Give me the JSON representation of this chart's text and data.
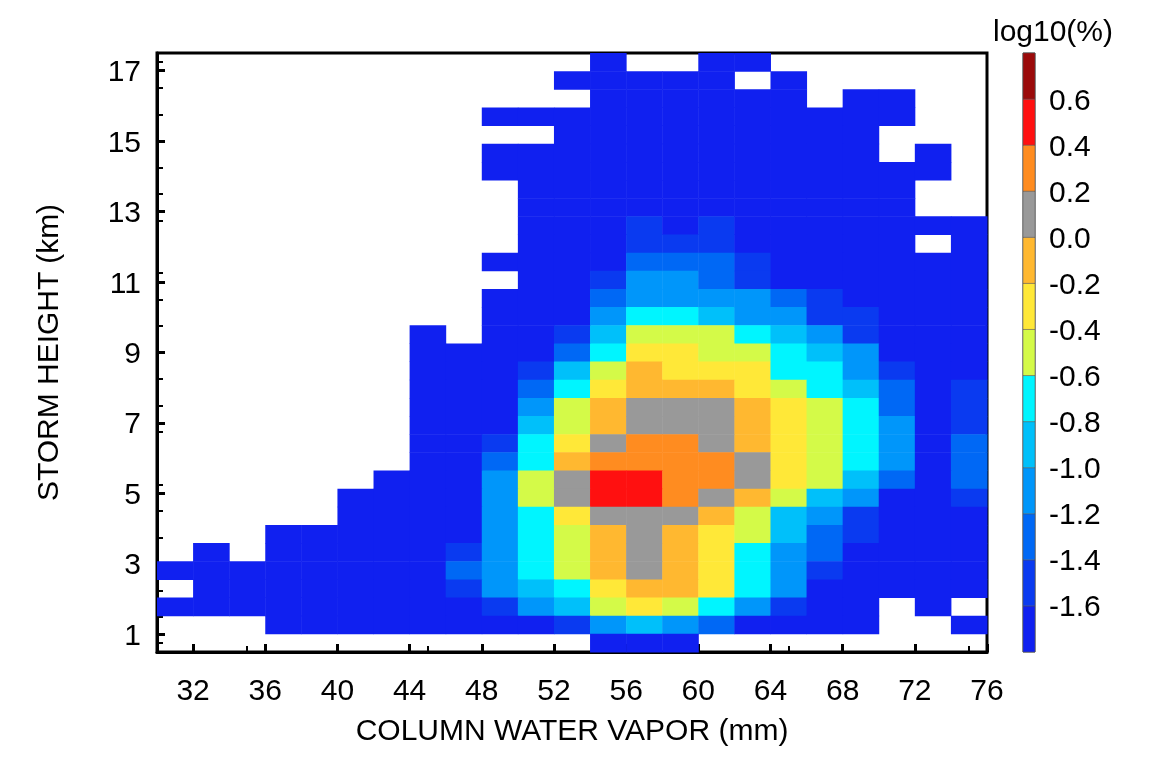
{
  "chart_data": {
    "type": "heatmap",
    "xlabel": "COLUMN WATER VAPOR (mm)",
    "ylabel": "STORM HEIGHT (km)",
    "clabel": "log10(%)",
    "xlim": [
      30,
      76
    ],
    "xticks": [
      32,
      36,
      40,
      44,
      48,
      52,
      56,
      60,
      64,
      68,
      72,
      76
    ],
    "ylim": [
      0.5,
      17.5
    ],
    "yticks": [
      1,
      3,
      5,
      7,
      9,
      11,
      13,
      15,
      17
    ],
    "clim": [
      -1.8,
      0.8
    ],
    "cticks": [
      -1.6,
      -1.4,
      -1.2,
      {
        "value": -1,
        "label": "-1.0"
      },
      -0.8,
      -0.6,
      -0.4,
      -0.2,
      {
        "value": 0,
        "label": "0.0"
      },
      0.2,
      0.4,
      0.6
    ],
    "colors": [
      "#1020f0",
      "#0a3af0",
      "#0068f5",
      "#0096fa",
      "#00c0fa",
      "#00f5ff",
      "#d4fa48",
      "#ffe838",
      "#ffb830",
      "#999999",
      "#ff8c20",
      "#ff1010",
      "#9b0a0a"
    ],
    "grid": false,
    "cells": [
      [
        null,
        null,
        null,
        null,
        null,
        null,
        null,
        null,
        null,
        null,
        null,
        null,
        -1.7,
        null,
        null,
        -1.7,
        -1.7,
        null,
        null,
        null,
        null,
        null,
        null
      ],
      [
        null,
        null,
        null,
        null,
        null,
        null,
        null,
        null,
        null,
        null,
        null,
        -1.7,
        -1.7,
        -1.7,
        -1.7,
        -1.7,
        null,
        -1.7,
        null,
        null,
        null,
        null,
        null
      ],
      [
        null,
        null,
        null,
        null,
        null,
        null,
        null,
        null,
        null,
        null,
        null,
        null,
        -1.7,
        -1.7,
        -1.7,
        -1.7,
        -1.7,
        -1.7,
        null,
        -1.7,
        -1.7,
        null,
        null
      ],
      [
        null,
        null,
        null,
        null,
        null,
        null,
        null,
        null,
        null,
        -1.7,
        -1.7,
        -1.7,
        -1.7,
        -1.7,
        -1.7,
        -1.7,
        -1.7,
        -1.7,
        -1.7,
        -1.7,
        -1.7,
        null,
        null
      ],
      [
        null,
        null,
        null,
        null,
        null,
        null,
        null,
        null,
        null,
        null,
        null,
        -1.7,
        -1.7,
        -1.7,
        -1.7,
        -1.7,
        -1.7,
        -1.7,
        -1.7,
        -1.7,
        null,
        null,
        null
      ],
      [
        null,
        null,
        null,
        null,
        null,
        null,
        null,
        null,
        null,
        -1.7,
        -1.7,
        -1.7,
        -1.7,
        -1.7,
        -1.7,
        -1.7,
        -1.7,
        -1.7,
        -1.7,
        -1.7,
        null,
        -1.7,
        null
      ],
      [
        null,
        null,
        null,
        null,
        null,
        null,
        null,
        null,
        null,
        -1.7,
        -1.7,
        -1.7,
        -1.7,
        -1.7,
        -1.7,
        -1.7,
        -1.7,
        -1.7,
        -1.7,
        -1.7,
        -1.7,
        -1.7,
        null
      ],
      [
        null,
        null,
        null,
        null,
        null,
        null,
        null,
        null,
        null,
        null,
        -1.7,
        -1.7,
        -1.7,
        -1.7,
        -1.7,
        -1.7,
        -1.7,
        -1.7,
        -1.7,
        -1.7,
        -1.7,
        null,
        null
      ],
      [
        null,
        null,
        null,
        null,
        null,
        null,
        null,
        null,
        null,
        null,
        -1.7,
        -1.7,
        -1.7,
        -1.7,
        -1.7,
        -1.7,
        -1.7,
        -1.7,
        -1.7,
        -1.7,
        -1.7,
        null,
        null
      ],
      [
        null,
        null,
        null,
        null,
        null,
        null,
        null,
        null,
        null,
        null,
        -1.7,
        -1.7,
        -1.7,
        -1.5,
        -1.7,
        -1.5,
        -1.7,
        -1.7,
        -1.7,
        -1.7,
        -1.7,
        -1.7,
        -1.7
      ],
      [
        null,
        null,
        null,
        null,
        null,
        null,
        null,
        null,
        null,
        null,
        -1.7,
        -1.7,
        -1.7,
        -1.5,
        -1.5,
        -1.5,
        -1.7,
        -1.7,
        -1.7,
        -1.7,
        -1.7,
        null,
        -1.7
      ],
      [
        null,
        null,
        null,
        null,
        null,
        null,
        null,
        null,
        null,
        -1.7,
        -1.7,
        -1.7,
        -1.7,
        -1.3,
        -1.3,
        -1.3,
        -1.5,
        -1.7,
        -1.7,
        -1.7,
        -1.7,
        -1.7,
        -1.7
      ],
      [
        null,
        null,
        null,
        null,
        null,
        null,
        null,
        null,
        null,
        null,
        -1.7,
        -1.7,
        -1.5,
        -1.1,
        -1.1,
        -1.3,
        -1.5,
        -1.7,
        -1.7,
        -1.7,
        -1.7,
        -1.7,
        -1.7
      ],
      [
        null,
        null,
        null,
        null,
        null,
        null,
        null,
        null,
        null,
        -1.7,
        -1.7,
        -1.7,
        -1.3,
        -1.1,
        -1.1,
        -1.1,
        -1.1,
        -1.3,
        -1.5,
        -1.7,
        -1.7,
        -1.7,
        -1.7
      ],
      [
        null,
        null,
        null,
        null,
        null,
        null,
        null,
        null,
        null,
        -1.7,
        -1.7,
        -1.7,
        -1.1,
        -0.7,
        -0.7,
        -0.9,
        -1.1,
        -1.1,
        -1.5,
        -1.5,
        -1.7,
        -1.7,
        -1.7
      ],
      [
        null,
        null,
        null,
        null,
        null,
        null,
        null,
        -1.7,
        null,
        -1.7,
        -1.7,
        -1.5,
        -0.9,
        -0.5,
        -0.5,
        -0.5,
        -0.7,
        -0.9,
        -1.1,
        -1.5,
        -1.7,
        -1.7,
        -1.7
      ],
      [
        null,
        null,
        null,
        null,
        null,
        null,
        null,
        -1.7,
        -1.7,
        -1.7,
        -1.7,
        -1.3,
        -0.7,
        -0.3,
        -0.3,
        -0.5,
        -0.5,
        -0.7,
        -0.9,
        -1.1,
        -1.7,
        -1.7,
        -1.7
      ],
      [
        null,
        null,
        null,
        null,
        null,
        null,
        null,
        -1.7,
        -1.7,
        -1.7,
        -1.5,
        -0.9,
        -0.5,
        -0.1,
        -0.3,
        -0.3,
        -0.3,
        -0.7,
        -0.7,
        -1.1,
        -1.5,
        -1.7,
        -1.7
      ],
      [
        null,
        null,
        null,
        null,
        null,
        null,
        null,
        -1.7,
        -1.7,
        -1.7,
        -1.3,
        -0.7,
        -0.3,
        -0.1,
        -0.1,
        -0.1,
        -0.3,
        -0.5,
        -0.7,
        -0.9,
        -1.3,
        -1.7,
        -1.5
      ],
      [
        null,
        null,
        null,
        null,
        null,
        null,
        null,
        -1.7,
        -1.7,
        -1.7,
        -1.1,
        -0.5,
        -0.1,
        0.1,
        0.1,
        0.1,
        -0.1,
        -0.3,
        -0.5,
        -0.7,
        -1.3,
        -1.7,
        -1.5
      ],
      [
        null,
        null,
        null,
        null,
        null,
        null,
        null,
        -1.7,
        -1.7,
        -1.7,
        -0.9,
        -0.5,
        -0.1,
        0.1,
        0.1,
        0.1,
        -0.1,
        -0.3,
        -0.5,
        -0.7,
        -1.1,
        -1.7,
        -1.5
      ],
      [
        null,
        null,
        null,
        null,
        null,
        null,
        null,
        -1.7,
        -1.7,
        -1.5,
        -0.7,
        -0.3,
        0.1,
        0.3,
        0.3,
        0.1,
        -0.1,
        -0.3,
        -0.5,
        -0.7,
        -1.1,
        -1.7,
        -1.3
      ],
      [
        null,
        null,
        null,
        null,
        null,
        null,
        null,
        -1.7,
        -1.7,
        -1.3,
        -0.7,
        -0.1,
        0.3,
        0.3,
        0.3,
        0.3,
        0.1,
        -0.3,
        -0.5,
        -0.7,
        -1.1,
        -1.7,
        -1.3
      ],
      [
        null,
        null,
        null,
        null,
        null,
        null,
        -1.7,
        -1.7,
        -1.7,
        -1.1,
        -0.5,
        0.1,
        0.5,
        0.5,
        0.3,
        0.3,
        0.1,
        -0.3,
        -0.5,
        -0.9,
        -1.3,
        -1.7,
        -1.3
      ],
      [
        null,
        null,
        null,
        null,
        null,
        -1.7,
        -1.7,
        -1.7,
        -1.7,
        -1.1,
        -0.5,
        0.1,
        0.5,
        0.5,
        0.3,
        0.1,
        -0.1,
        -0.5,
        -0.9,
        -1.1,
        -1.7,
        -1.7,
        -1.5
      ],
      [
        null,
        null,
        null,
        null,
        null,
        -1.7,
        -1.7,
        -1.7,
        -1.7,
        -1.1,
        -0.7,
        -0.3,
        0.1,
        0.1,
        0.1,
        -0.1,
        -0.5,
        -0.9,
        -1.1,
        -1.5,
        -1.7,
        -1.7,
        -1.7
      ],
      [
        null,
        null,
        null,
        -1.7,
        -1.7,
        -1.7,
        -1.7,
        -1.7,
        -1.7,
        -1.1,
        -0.7,
        -0.5,
        -0.1,
        0.1,
        -0.1,
        -0.3,
        -0.5,
        -0.9,
        -1.3,
        -1.5,
        -1.7,
        -1.7,
        -1.7
      ],
      [
        null,
        -1.7,
        null,
        -1.7,
        -1.7,
        -1.7,
        -1.7,
        -1.7,
        -1.5,
        -1.1,
        -0.7,
        -0.5,
        -0.1,
        0.1,
        -0.1,
        -0.3,
        -0.7,
        -1.1,
        -1.3,
        -1.7,
        -1.7,
        -1.7,
        -1.7
      ],
      [
        -1.7,
        -1.7,
        -1.7,
        -1.7,
        -1.7,
        -1.7,
        -1.7,
        -1.7,
        -1.3,
        -1.1,
        -0.7,
        -0.5,
        -0.1,
        0.1,
        -0.1,
        -0.3,
        -0.7,
        -1.1,
        -1.5,
        -1.7,
        -1.7,
        -1.7,
        -1.7
      ],
      [
        null,
        -1.7,
        -1.7,
        -1.7,
        -1.7,
        -1.7,
        -1.7,
        -1.7,
        -1.5,
        -1.1,
        -0.9,
        -0.7,
        -0.3,
        -0.1,
        -0.1,
        -0.3,
        -0.7,
        -1.1,
        -1.7,
        -1.7,
        -1.7,
        -1.7,
        -1.7
      ],
      [
        -1.7,
        -1.7,
        -1.7,
        -1.7,
        -1.7,
        -1.7,
        -1.7,
        -1.7,
        -1.7,
        -1.5,
        -1.1,
        -0.9,
        -0.5,
        -0.3,
        -0.5,
        -0.7,
        -1.1,
        -1.5,
        -1.7,
        -1.7,
        null,
        -1.7,
        null
      ],
      [
        null,
        null,
        null,
        -1.7,
        -1.7,
        -1.7,
        -1.7,
        -1.7,
        -1.7,
        -1.7,
        -1.7,
        -1.5,
        -1.1,
        -0.9,
        -1.1,
        -1.3,
        -1.7,
        -1.7,
        -1.7,
        -1.7,
        null,
        null,
        -1.7
      ],
      [
        null,
        null,
        null,
        null,
        null,
        null,
        null,
        null,
        null,
        null,
        null,
        null,
        -1.7,
        -1.7,
        -1.7,
        null,
        null,
        null,
        null,
        null,
        null,
        null,
        null
      ]
    ]
  }
}
